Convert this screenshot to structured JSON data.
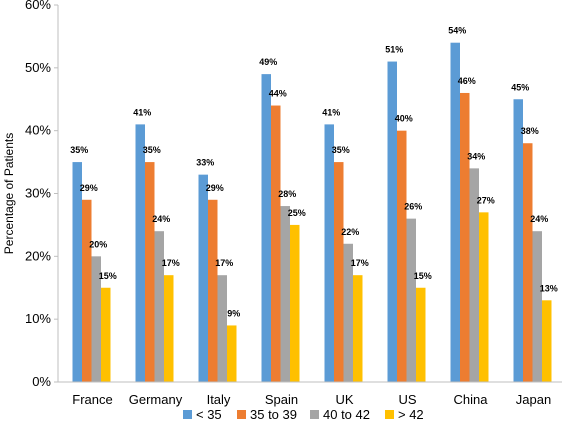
{
  "chart_data": {
    "type": "bar",
    "title": "",
    "xlabel": "",
    "ylabel": "Percentage of Patients",
    "ylim": [
      0,
      60
    ],
    "yticks": [
      "0%",
      "10%",
      "20%",
      "30%",
      "40%",
      "50%",
      "60%"
    ],
    "grid": false,
    "legend_position": "bottom",
    "categories": [
      "France",
      "Germany",
      "Italy",
      "Spain",
      "UK",
      "US",
      "China",
      "Japan"
    ],
    "series": [
      {
        "name": "< 35",
        "color": "#5B9BD5",
        "values": [
          35,
          41,
          33,
          49,
          41,
          51,
          54,
          45
        ],
        "labels": [
          "35%",
          "41%",
          "33%",
          "49%",
          "41%",
          "51%",
          "54%",
          "45%"
        ]
      },
      {
        "name": "35 to 39",
        "color": "#ED7D31",
        "values": [
          29,
          35,
          29,
          44,
          35,
          40,
          46,
          38
        ],
        "labels": [
          "29%",
          "35%",
          "29%",
          "44%",
          "35%",
          "40%",
          "46%",
          "38%"
        ]
      },
      {
        "name": "40 to 42",
        "color": "#A5A5A5",
        "values": [
          20,
          24,
          17,
          28,
          22,
          26,
          34,
          24
        ],
        "labels": [
          "20%",
          "24%",
          "17%",
          "28%",
          "22%",
          "26%",
          "34%",
          "24%"
        ]
      },
      {
        "name": "> 42",
        "color": "#FFC000",
        "values": [
          15,
          17,
          9,
          25,
          17,
          15,
          27,
          13
        ],
        "labels": [
          "15%",
          "17%",
          "9%",
          "25%",
          "17%",
          "15%",
          "27%",
          "13%"
        ]
      }
    ]
  }
}
